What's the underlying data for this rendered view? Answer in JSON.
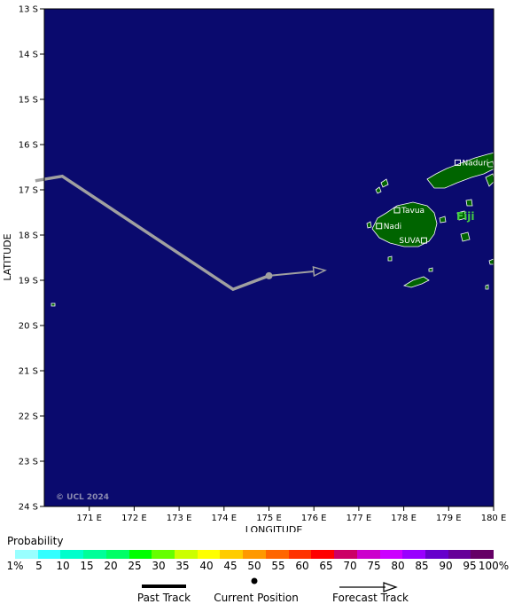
{
  "map": {
    "lat_labels": [
      "13 S",
      "14 S",
      "15 S",
      "16 S",
      "17 S",
      "18 S",
      "19 S",
      "20 S",
      "21 S",
      "22 S",
      "23 S",
      "24 S"
    ],
    "lon_labels": [
      "171 E",
      "172 E",
      "173 E",
      "174 E",
      "175 E",
      "176 E",
      "177 E",
      "178 E",
      "179 E",
      "180 E"
    ],
    "x_axis_title": "LONGITUDE",
    "y_axis_title": "LATITUDE",
    "lat_range": [
      13,
      24
    ],
    "lon_range": [
      170,
      180
    ],
    "ocean_color": "#0a0a6e",
    "land_color": "#006400",
    "copyright": "© UCL 2024",
    "country_label": "Fiji",
    "places": [
      {
        "name": "Naduri",
        "lat": 16.4,
        "lon": 179.2
      },
      {
        "name": "Tavua",
        "lat": 17.45,
        "lon": 177.85
      },
      {
        "name": "Nadi",
        "lat": 17.8,
        "lon": 177.45
      },
      {
        "name": "SUVA",
        "lat": 18.12,
        "lon": 178.45
      }
    ],
    "past_track": [
      [
        169.8,
        16.8
      ],
      [
        170.4,
        16.7
      ],
      [
        174.2,
        19.2
      ],
      [
        175.0,
        18.9
      ]
    ],
    "current_position": [
      175.0,
      18.9
    ],
    "forecast_track": [
      [
        175.0,
        18.9
      ],
      [
        176.25,
        18.78
      ]
    ]
  },
  "legend": {
    "title": "Probability",
    "colors": [
      "#99ffff",
      "#33ffff",
      "#00ffcc",
      "#00ff99",
      "#00ff66",
      "#00ff00",
      "#66ff00",
      "#ccff00",
      "#ffff00",
      "#ffcc00",
      "#ff9900",
      "#ff6600",
      "#ff3300",
      "#ff0000",
      "#cc0066",
      "#cc00cc",
      "#cc00ff",
      "#9900ff",
      "#6600cc",
      "#660099",
      "#660066"
    ],
    "labels": [
      "1%",
      "5",
      "10",
      "15",
      "20",
      "25",
      "30",
      "35",
      "40",
      "45",
      "50",
      "55",
      "60",
      "65",
      "70",
      "75",
      "80",
      "85",
      "90",
      "95",
      "100%"
    ]
  },
  "track_key": {
    "past": "Past Track",
    "current": "Current Position",
    "forecast": "Forecast Track"
  }
}
